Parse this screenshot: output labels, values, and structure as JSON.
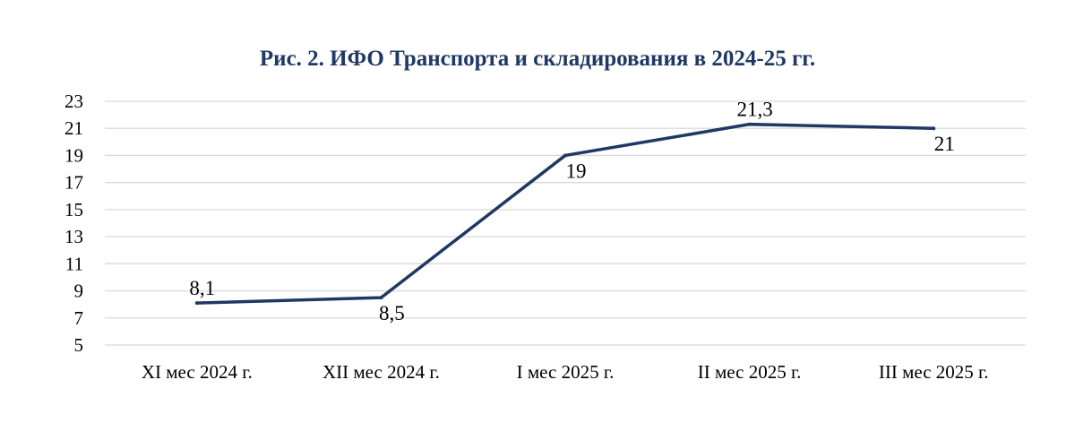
{
  "chart_data": {
    "type": "line",
    "title": "Рис. 2. ИФО Транспорта и складирования в 2024-25 гг.",
    "categories": [
      "XI мес 2024 г.",
      "XII мес 2024 г.",
      "I мес 2025 г.",
      "II мес 2025 г.",
      "III мес 2025 г."
    ],
    "series": [
      {
        "values": [
          8.1,
          8.5,
          19,
          21.3,
          21
        ],
        "data_labels": [
          "8,1",
          "8,5",
          "19",
          "21,3",
          "21"
        ],
        "color": "#1f3864"
      }
    ],
    "yticks": [
      5,
      7,
      9,
      11,
      13,
      15,
      17,
      19,
      21,
      23
    ],
    "ylim": [
      5,
      23
    ],
    "grid": true,
    "legend": "none"
  },
  "colors": {
    "title": "#1f3864",
    "line": "#1f3864",
    "grid": "#d9d9d9"
  }
}
